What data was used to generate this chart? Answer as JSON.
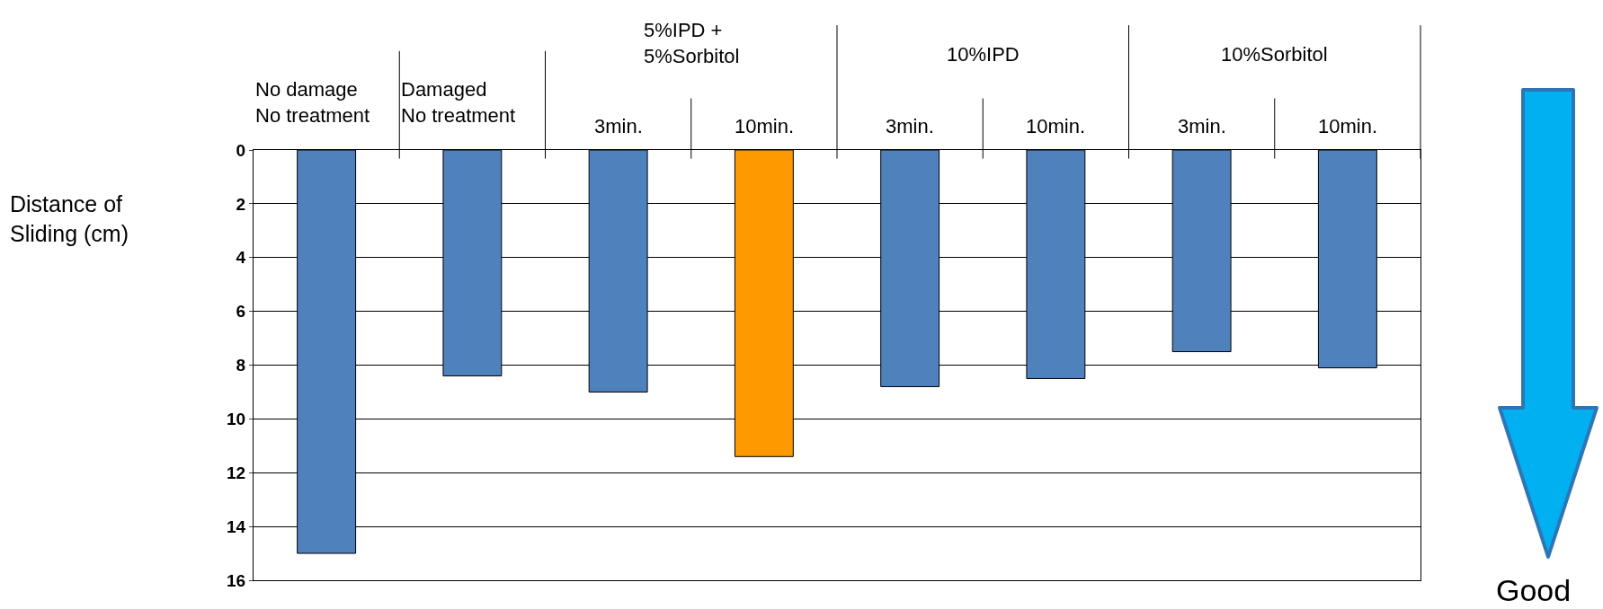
{
  "chart_data": {
    "type": "bar",
    "ylabel": "Distance of\nSliding (cm)",
    "categories": [
      "No damage\nNo treatment",
      "Damaged\nNo treatment",
      "3min.",
      "10min.",
      "3min.",
      "10min.",
      "3min.",
      "10min."
    ],
    "values": [
      15,
      8.4,
      9.0,
      11.4,
      8.8,
      8.5,
      7.5,
      8.1
    ],
    "colors": [
      "#4f81bd",
      "#4f81bd",
      "#4f81bd",
      "#ff9900",
      "#4f81bd",
      "#4f81bd",
      "#4f81bd",
      "#4f81bd"
    ],
    "ylim": [
      16,
      0
    ],
    "yticks": [
      0,
      2,
      4,
      6,
      8,
      10,
      12,
      14,
      16
    ],
    "grid": "y",
    "annotations": [
      "5%IPD +\n5%Sorbitol",
      "10%IPD",
      "10%Sorbitol",
      "Good"
    ]
  }
}
